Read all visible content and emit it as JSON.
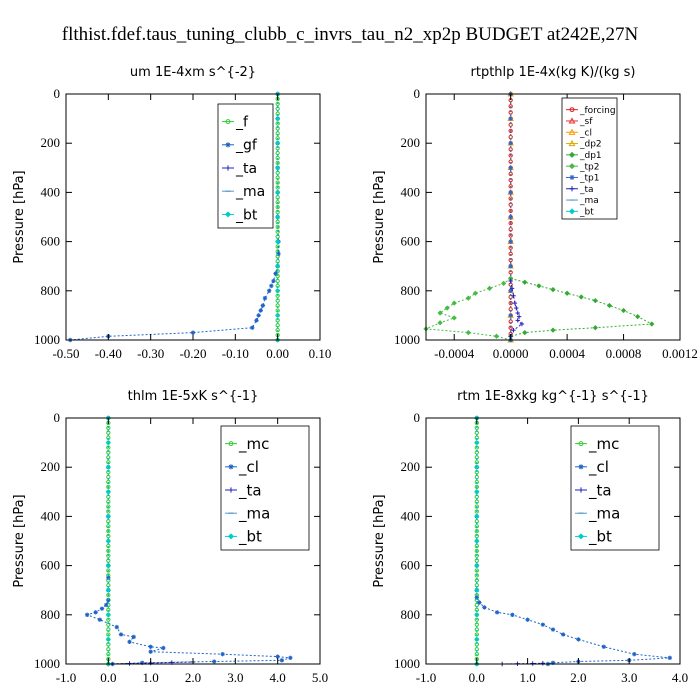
{
  "figure": {
    "title": "flthist.fdef.taus_tuning_clubb_c_invrs_tau_n2_xp2p  BUDGET at242E,27N"
  },
  "chart_data": [
    {
      "id": "um",
      "type": "line",
      "title": "um   1E-4xm s^{-2}",
      "ylabel": "Pressure [hPa]",
      "xlim": [
        -0.5,
        0.1
      ],
      "ylim": [
        1000,
        0
      ],
      "xticks": [
        -0.5,
        -0.4,
        -0.3,
        -0.2,
        -0.1,
        0.0,
        0.1
      ],
      "xtick_labels": [
        "-0.50",
        "-0.40",
        "-0.30",
        "-0.20",
        "-0.10",
        "0.00",
        "0.10"
      ],
      "yticks": [
        0,
        200,
        400,
        600,
        800,
        1000
      ],
      "ytick_labels": [
        "0",
        "200",
        "400",
        "600",
        "800",
        "1000"
      ],
      "legend_pos": "top-right",
      "legend_font": 14,
      "series": [
        {
          "name": "_f",
          "color": "#33cc33",
          "marker": "circle",
          "x": [
            0,
            0,
            0,
            0,
            0,
            0,
            0,
            0,
            0,
            0,
            0,
            0,
            0,
            0,
            0,
            0,
            0,
            0,
            0,
            0,
            0,
            0,
            0,
            0,
            0,
            0,
            0,
            0,
            0,
            0,
            0,
            0,
            0,
            0,
            0,
            0,
            0,
            0,
            0,
            0,
            0,
            0,
            0,
            0,
            0,
            0,
            0,
            0,
            0,
            0,
            0
          ],
          "y": [
            0,
            20,
            40,
            60,
            80,
            100,
            120,
            140,
            160,
            180,
            200,
            220,
            240,
            260,
            280,
            300,
            320,
            340,
            360,
            380,
            400,
            420,
            440,
            460,
            480,
            500,
            520,
            540,
            560,
            580,
            600,
            620,
            640,
            660,
            680,
            700,
            720,
            740,
            760,
            780,
            800,
            820,
            840,
            860,
            880,
            900,
            920,
            940,
            960,
            980,
            1000
          ]
        },
        {
          "name": "_gf",
          "color": "#1e64c8",
          "marker": "star",
          "x": [
            0,
            0,
            0,
            0,
            0,
            0,
            0.002,
            0.002,
            0,
            -0.005,
            -0.01,
            -0.015,
            -0.02,
            -0.03,
            -0.035,
            -0.04,
            -0.045,
            -0.05,
            -0.06,
            -0.2,
            -0.4,
            -0.49
          ],
          "y": [
            0,
            100,
            200,
            300,
            400,
            500,
            600,
            650,
            700,
            730,
            760,
            780,
            800,
            830,
            860,
            880,
            900,
            920,
            950,
            970,
            985,
            1000
          ]
        },
        {
          "name": "_ta",
          "color": "#2222bb",
          "marker": "plus",
          "x": [],
          "y": []
        },
        {
          "name": "_ma",
          "color": "#5599cc",
          "marker": "dash",
          "x": [],
          "y": []
        },
        {
          "name": "_bt",
          "color": "#00cccc",
          "marker": "diamond",
          "x": [
            0,
            0,
            0,
            0,
            0,
            0,
            0,
            0,
            0,
            0,
            0
          ],
          "y": [
            0,
            100,
            200,
            300,
            400,
            500,
            600,
            700,
            800,
            900,
            1000
          ]
        }
      ]
    },
    {
      "id": "rtpthlp",
      "type": "line",
      "title": "rtpthlp   1E-4x(kg K)/(kg s)",
      "ylabel": "Pressure [hPa]",
      "xlim": [
        -0.0006,
        0.0012
      ],
      "ylim": [
        1000,
        0
      ],
      "xticks": [
        -0.0004,
        0,
        0.0004,
        0.0008,
        0.0012
      ],
      "xtick_labels": [
        "-0.0004",
        "0.0000",
        "0.0004",
        "0.0008",
        "0.0012"
      ],
      "yticks": [
        0,
        200,
        400,
        600,
        800,
        1000
      ],
      "ytick_labels": [
        "0",
        "200",
        "400",
        "600",
        "800",
        "1000"
      ],
      "legend_pos": "top-right",
      "legend_font": 9,
      "series": [
        {
          "name": "_forcing",
          "color": "#dd2222",
          "marker": "circle",
          "x": [
            0,
            0,
            0,
            0,
            0,
            0,
            0,
            0,
            0,
            0,
            0,
            0,
            0,
            0,
            0,
            0,
            0,
            0,
            0,
            0,
            0,
            0,
            0,
            0,
            0,
            0,
            0,
            0,
            0,
            0,
            0,
            0,
            0,
            0,
            0,
            0,
            0,
            0,
            0,
            0,
            0
          ],
          "y": [
            0,
            25,
            50,
            75,
            100,
            125,
            150,
            175,
            200,
            225,
            250,
            275,
            300,
            325,
            350,
            375,
            400,
            425,
            450,
            475,
            500,
            525,
            550,
            575,
            600,
            625,
            650,
            675,
            700,
            725,
            750,
            775,
            800,
            825,
            850,
            875,
            900,
            925,
            950,
            975,
            1000
          ]
        },
        {
          "name": "_sf",
          "color": "#ee3333",
          "marker": "tri",
          "x": [
            0,
            0,
            0,
            0,
            0,
            0,
            0,
            0,
            0,
            0,
            0
          ],
          "y": [
            0,
            100,
            200,
            300,
            400,
            500,
            600,
            700,
            800,
            900,
            1000
          ]
        },
        {
          "name": "_cl",
          "color": "#ff9900",
          "marker": "tri",
          "x": [
            0,
            0,
            0,
            0,
            0,
            0,
            0,
            0,
            0,
            0,
            0
          ],
          "y": [
            0,
            100,
            200,
            300,
            400,
            500,
            600,
            700,
            800,
            900,
            1000
          ]
        },
        {
          "name": "_dp2",
          "color": "#ddaa00",
          "marker": "tri",
          "x": [
            0,
            0,
            0,
            0,
            0,
            0,
            0,
            0,
            0,
            0,
            0
          ],
          "y": [
            0,
            100,
            200,
            300,
            400,
            500,
            600,
            700,
            800,
            900,
            1000
          ]
        },
        {
          "name": "_dp1",
          "color": "#33aa33",
          "marker": "diamond",
          "x": [
            0,
            0.0001,
            0.0002,
            0.0003,
            0.0004,
            0.0005,
            0.0006,
            0.0007,
            0.0008,
            0.0009,
            0.001,
            0.0006,
            0.0003,
            0.0001,
            0
          ],
          "y": [
            750,
            765,
            780,
            795,
            810,
            825,
            840,
            860,
            880,
            905,
            935,
            950,
            960,
            970,
            985
          ]
        },
        {
          "name": "_tp2",
          "color": "#44bb44",
          "marker": "diamond",
          "x": [
            0,
            -5e-05,
            -0.00015,
            -0.00025,
            -0.0003,
            -0.0004,
            -0.00045,
            -0.0005,
            -0.0004,
            -0.0005,
            -0.0006,
            -0.0003,
            -0.0001,
            0
          ],
          "y": [
            750,
            770,
            790,
            810,
            830,
            850,
            870,
            890,
            910,
            930,
            955,
            970,
            985,
            1000
          ]
        },
        {
          "name": "_tp1",
          "color": "#3366cc",
          "marker": "star",
          "x": [
            0,
            0,
            0,
            0,
            0,
            0,
            0,
            0,
            0,
            0,
            0
          ],
          "y": [
            0,
            100,
            200,
            300,
            400,
            500,
            600,
            700,
            800,
            900,
            1000
          ]
        },
        {
          "name": "_ta",
          "color": "#2222bb",
          "marker": "plus",
          "x": [
            0,
            1e-05,
            2e-05,
            3e-05,
            4e-05,
            5e-05,
            6e-05,
            5e-05,
            8e-05,
            2e-05,
            0
          ],
          "y": [
            760,
            790,
            820,
            850,
            870,
            890,
            905,
            920,
            935,
            960,
            985
          ]
        },
        {
          "name": "_ma",
          "color": "#5599cc",
          "marker": "dash",
          "x": [],
          "y": []
        },
        {
          "name": "_bt",
          "color": "#00cccc",
          "marker": "diamond",
          "x": [],
          "y": []
        }
      ]
    },
    {
      "id": "thlm",
      "type": "line",
      "title": "thlm   1E-5xK s^{-1}",
      "ylabel": "Pressure [hPa]",
      "xlim": [
        -1.0,
        5.0
      ],
      "ylim": [
        1000,
        0
      ],
      "xticks": [
        -1,
        0,
        1,
        2,
        3,
        4,
        5
      ],
      "xtick_labels": [
        "-1.0",
        "0.0",
        "1.0",
        "2.0",
        "3.0",
        "4.0",
        "5.0"
      ],
      "yticks": [
        0,
        200,
        400,
        600,
        800,
        1000
      ],
      "ytick_labels": [
        "0",
        "200",
        "400",
        "600",
        "800",
        "1000"
      ],
      "legend_pos": "top-right",
      "legend_font": 15,
      "series": [
        {
          "name": "_mc",
          "color": "#33cc33",
          "marker": "circle",
          "x": [
            0,
            0,
            0,
            0,
            0,
            0,
            0,
            0,
            0,
            0,
            0,
            0,
            0,
            0,
            0,
            0,
            0,
            0,
            0,
            0,
            0,
            0,
            0,
            0,
            0,
            0,
            0,
            0,
            0,
            0,
            0,
            0,
            0,
            0,
            0,
            0,
            0,
            0,
            0,
            0,
            0,
            0,
            0,
            0,
            0,
            0,
            0,
            0,
            0,
            0,
            0
          ],
          "y": [
            0,
            20,
            40,
            60,
            80,
            100,
            120,
            140,
            160,
            180,
            200,
            220,
            240,
            260,
            280,
            300,
            320,
            340,
            360,
            380,
            400,
            420,
            440,
            460,
            480,
            500,
            520,
            540,
            560,
            580,
            600,
            620,
            640,
            660,
            680,
            700,
            720,
            740,
            760,
            780,
            800,
            820,
            840,
            860,
            880,
            900,
            920,
            940,
            960,
            980,
            1000
          ]
        },
        {
          "name": "_cl",
          "color": "#1e64c8",
          "marker": "star",
          "x": [
            0,
            0,
            0,
            0,
            0,
            0,
            0,
            -0.05,
            -0.15,
            -0.3,
            -0.5,
            -0.2,
            0.2,
            0.3,
            0.6,
            0.5,
            1.0,
            1.3,
            1.0,
            2.7,
            4.0,
            4.3,
            4.1,
            2.5,
            0.8,
            0.1
          ],
          "y": [
            0,
            200,
            400,
            600,
            650,
            700,
            740,
            760,
            775,
            790,
            800,
            820,
            850,
            880,
            890,
            910,
            930,
            935,
            950,
            960,
            970,
            975,
            985,
            990,
            995,
            1000
          ]
        },
        {
          "name": "_ta",
          "color": "#2222bb",
          "marker": "plus",
          "x": [
            0,
            0.5,
            1,
            1.5,
            2
          ],
          "y": [
            1000,
            998,
            996,
            994,
            992
          ]
        },
        {
          "name": "_ma",
          "color": "#5599cc",
          "marker": "dash",
          "x": [],
          "y": []
        },
        {
          "name": "_bt",
          "color": "#00cccc",
          "marker": "diamond",
          "x": [
            0,
            0,
            0,
            0,
            0,
            0,
            0,
            0,
            0,
            0,
            0
          ],
          "y": [
            0,
            100,
            200,
            300,
            400,
            500,
            600,
            700,
            800,
            900,
            1000
          ]
        }
      ]
    },
    {
      "id": "rtm",
      "type": "line",
      "title": "rtm   1E-8xkg kg^{-1} s^{-1}",
      "ylabel": "Pressure [hPa]",
      "xlim": [
        -1.0,
        4.0
      ],
      "ylim": [
        1000,
        0
      ],
      "xticks": [
        -1,
        0,
        1,
        2,
        3,
        4
      ],
      "xtick_labels": [
        "-1.0",
        "0.0",
        "1.0",
        "2.0",
        "3.0",
        "4.0"
      ],
      "yticks": [
        0,
        200,
        400,
        600,
        800,
        1000
      ],
      "ytick_labels": [
        "0",
        "200",
        "400",
        "600",
        "800",
        "1000"
      ],
      "legend_pos": "top-right",
      "legend_font": 15,
      "series": [
        {
          "name": "_mc",
          "color": "#33cc33",
          "marker": "circle",
          "x": [
            0,
            0,
            0,
            0,
            0,
            0,
            0,
            0,
            0,
            0,
            0,
            0,
            0,
            0,
            0,
            0,
            0,
            0,
            0,
            0,
            0,
            0,
            0,
            0,
            0,
            0,
            0,
            0,
            0,
            0,
            0,
            0,
            0,
            0,
            0,
            0,
            0,
            0,
            0,
            0,
            0,
            0,
            0,
            0,
            0,
            0,
            0,
            0,
            0,
            0,
            0
          ],
          "y": [
            0,
            20,
            40,
            60,
            80,
            100,
            120,
            140,
            160,
            180,
            200,
            220,
            240,
            260,
            280,
            300,
            320,
            340,
            360,
            380,
            400,
            420,
            440,
            460,
            480,
            500,
            520,
            540,
            560,
            580,
            600,
            620,
            640,
            660,
            680,
            700,
            720,
            740,
            760,
            780,
            800,
            820,
            840,
            860,
            880,
            900,
            920,
            940,
            960,
            980,
            1000
          ]
        },
        {
          "name": "_cl",
          "color": "#1e64c8",
          "marker": "star",
          "x": [
            0,
            0,
            0,
            0,
            0,
            0,
            0.05,
            0.15,
            0.4,
            0.7,
            1.0,
            1.3,
            1.5,
            1.7,
            2.0,
            2.5,
            3.1,
            3.8,
            3.0,
            2.0,
            1.5,
            1.4
          ],
          "y": [
            0,
            200,
            400,
            600,
            700,
            730,
            750,
            770,
            790,
            800,
            820,
            840,
            860,
            880,
            900,
            930,
            960,
            975,
            985,
            990,
            995,
            1000
          ]
        },
        {
          "name": "_ta",
          "color": "#2222bb",
          "marker": "plus",
          "x": [
            0.5,
            0.8,
            1.1,
            1.3
          ],
          "y": [
            1000,
            999,
            998,
            997
          ]
        },
        {
          "name": "_ma",
          "color": "#5599cc",
          "marker": "dash",
          "x": [],
          "y": []
        },
        {
          "name": "_bt",
          "color": "#00cccc",
          "marker": "diamond",
          "x": [
            0,
            0,
            0,
            0,
            0,
            0,
            0,
            0,
            0,
            0,
            0
          ],
          "y": [
            0,
            100,
            200,
            300,
            400,
            500,
            600,
            700,
            800,
            900,
            1000
          ]
        }
      ]
    }
  ]
}
